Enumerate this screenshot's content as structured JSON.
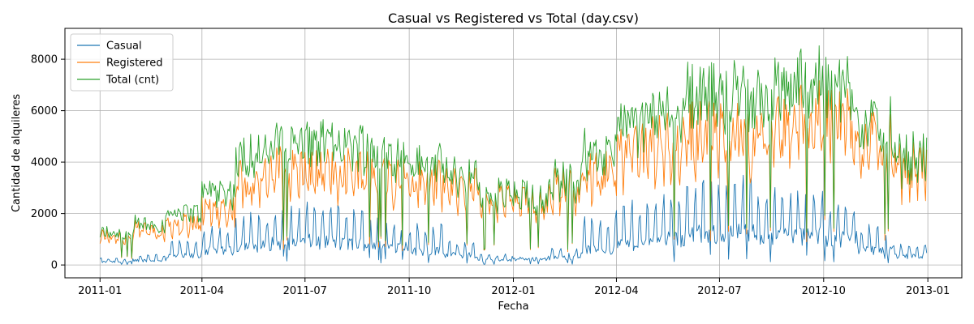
{
  "chart_data": {
    "type": "line",
    "title": "Casual vs Registered vs Total (day.csv)",
    "xlabel": "Fecha",
    "ylabel": "Cantidad de alquileres",
    "xlim": [
      "2010-12-01",
      "2013-01-31"
    ],
    "ylim": [
      -500,
      9200
    ],
    "grid": true,
    "legend_position": "top-left",
    "x_ticks": [
      "2011-01",
      "2011-04",
      "2011-07",
      "2011-10",
      "2012-01",
      "2012-04",
      "2012-07",
      "2012-10",
      "2013-01"
    ],
    "y_ticks": [
      0,
      2000,
      4000,
      6000,
      8000
    ],
    "y_tick_labels": [
      "0",
      "2000",
      "4000",
      "6000",
      "8000"
    ],
    "start_date": "2011-01-01",
    "end_date": "2012-12-31",
    "series": [
      {
        "name": "Casual",
        "color": "#1f77b4",
        "monthly_baseline": [
          130,
          200,
          380,
          600,
          800,
          950,
          1000,
          900,
          800,
          600,
          420,
          200,
          250,
          320,
          650,
          900,
          1100,
          1300,
          1350,
          1300,
          1250,
          1150,
          650,
          400
        ],
        "weekend_peaks": [
          250,
          400,
          900,
          1400,
          1900,
          2100,
          2300,
          2100,
          1700,
          1500,
          900,
          400,
          300,
          600,
          1800,
          2300,
          2800,
          3000,
          3200,
          2800,
          2700,
          2200,
          1500,
          800
        ]
      },
      {
        "name": "Registered",
        "color": "#ff7f0e",
        "monthly_baseline": [
          1200,
          1450,
          1700,
          2300,
          3500,
          3900,
          3800,
          3900,
          3600,
          3400,
          3200,
          2700,
          2600,
          3200,
          3700,
          4600,
          5000,
          5400,
          5300,
          5500,
          6000,
          6000,
          5000,
          4000
        ]
      },
      {
        "name": "Total (cnt)",
        "color": "#2ca02c"
      }
    ]
  }
}
